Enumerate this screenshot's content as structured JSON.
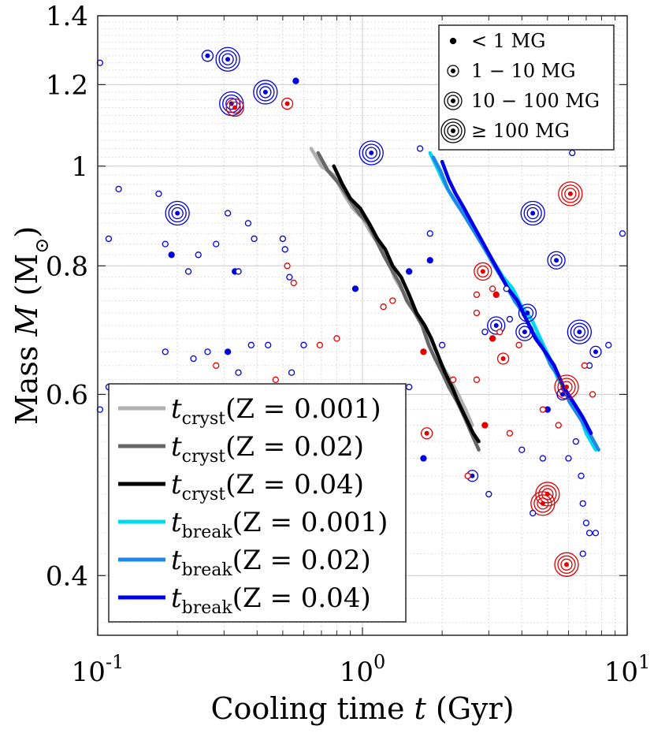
{
  "chart_data": {
    "type": "scatter",
    "xscale": "log",
    "yscale": "log",
    "xlim": [
      0.1,
      10
    ],
    "ylim": [
      0.35,
      1.4
    ],
    "xlabel_prefix": "Cooling time ",
    "xlabel_var": "t",
    "xlabel_suffix": " (Gyr)",
    "ylabel_prefix": "Mass ",
    "ylabel_var": "M",
    "ylabel_unit_open": " (M",
    "ylabel_unit_sub": "⊙",
    "ylabel_unit_close": ")",
    "x_ticks": [
      {
        "value": 0.1,
        "base": "10",
        "exp": "-1"
      },
      {
        "value": 1,
        "base": "10",
        "exp": "0"
      },
      {
        "value": 10,
        "base": "10",
        "exp": "1"
      }
    ],
    "y_ticks": [
      {
        "value": 0.4,
        "label": "0.4"
      },
      {
        "value": 0.6,
        "label": "0.6"
      },
      {
        "value": 0.8,
        "label": "0.8"
      },
      {
        "value": 1.0,
        "label": "1"
      },
      {
        "value": 1.2,
        "label": "1.2"
      },
      {
        "value": 1.4,
        "label": "1.4"
      }
    ],
    "colors": {
      "blue_points": "#0000dd",
      "red_points": "#e00000",
      "cryst_Z0001": "#b0b0b0",
      "cryst_Z002": "#666666",
      "cryst_Z004": "#000000",
      "break_Z0001": "#00d8f0",
      "break_Z002": "#1e88e8",
      "break_Z004": "#0000e6"
    },
    "field_legend": [
      {
        "label": "< 1 MG",
        "rings": 0
      },
      {
        "label": "1 − 10 MG",
        "rings": 1
      },
      {
        "label": "10 − 100 MG",
        "rings": 2
      },
      {
        "label": "≥ 100 MG",
        "rings": 3
      }
    ],
    "series": [
      {
        "name": "cryst_Z0001",
        "label_main": "t",
        "label_sub": "cryst",
        "label_rest": "(Z = 0.001)",
        "color_key": "cryst_Z0001",
        "x": [
          0.64,
          0.7,
          0.78,
          0.85,
          0.92,
          1.0,
          1.08,
          1.15,
          1.25,
          1.32,
          1.4,
          1.5,
          1.6,
          1.7,
          1.8,
          1.9,
          2.0,
          2.15,
          2.3,
          2.45,
          2.6
        ],
        "y": [
          1.04,
          1.0,
          0.98,
          0.94,
          0.91,
          0.89,
          0.86,
          0.84,
          0.81,
          0.78,
          0.76,
          0.74,
          0.72,
          0.7,
          0.68,
          0.66,
          0.64,
          0.62,
          0.6,
          0.58,
          0.56
        ]
      },
      {
        "name": "cryst_Z002",
        "label_main": "t",
        "label_sub": "cryst",
        "label_rest": "(Z = 0.02)",
        "color_key": "cryst_Z002",
        "x": [
          0.68,
          0.74,
          0.82,
          0.89,
          0.97,
          1.05,
          1.12,
          1.2,
          1.3,
          1.38,
          1.47,
          1.58,
          1.68,
          1.78,
          1.88,
          2.0,
          2.12,
          2.28,
          2.43,
          2.58,
          2.75
        ],
        "y": [
          1.03,
          0.99,
          0.96,
          0.93,
          0.9,
          0.88,
          0.85,
          0.82,
          0.79,
          0.77,
          0.74,
          0.72,
          0.7,
          0.67,
          0.65,
          0.63,
          0.61,
          0.59,
          0.57,
          0.55,
          0.53
        ]
      },
      {
        "name": "cryst_Z004",
        "label_main": "t",
        "label_sub": "cryst",
        "label_rest": "(Z = 0.04)",
        "color_key": "cryst_Z004",
        "x": [
          0.78,
          0.84,
          0.9,
          0.98,
          1.06,
          1.14,
          1.22,
          1.3,
          1.4,
          1.5,
          1.6,
          1.72,
          1.82,
          1.95,
          2.05,
          2.18,
          2.3,
          2.45,
          2.62,
          2.75
        ],
        "y": [
          1.0,
          0.96,
          0.93,
          0.91,
          0.88,
          0.85,
          0.83,
          0.8,
          0.78,
          0.75,
          0.72,
          0.7,
          0.68,
          0.65,
          0.63,
          0.61,
          0.59,
          0.57,
          0.55,
          0.54
        ]
      },
      {
        "name": "break_Z0001",
        "label_main": "t",
        "label_sub": "break",
        "label_rest": "(Z = 0.001)",
        "color_key": "break_Z0001",
        "x": [
          1.8,
          1.9,
          2.05,
          2.2,
          2.4,
          2.6,
          2.85,
          3.1,
          3.4,
          3.7,
          4.0,
          4.35,
          4.7,
          5.1,
          5.5,
          6.0,
          6.5,
          7.0,
          7.6
        ],
        "y": [
          1.03,
          1.0,
          0.96,
          0.93,
          0.9,
          0.87,
          0.84,
          0.81,
          0.78,
          0.76,
          0.73,
          0.71,
          0.68,
          0.65,
          0.62,
          0.6,
          0.58,
          0.55,
          0.53
        ]
      },
      {
        "name": "break_Z002",
        "label_main": "t",
        "label_sub": "break",
        "label_rest": "(Z = 0.02)",
        "color_key": "break_Z002",
        "x": [
          1.85,
          1.97,
          2.1,
          2.27,
          2.46,
          2.67,
          2.9,
          3.15,
          3.45,
          3.75,
          4.05,
          4.4,
          4.75,
          5.15,
          5.6,
          6.05,
          6.6,
          7.2,
          7.8
        ],
        "y": [
          1.02,
          0.99,
          0.95,
          0.92,
          0.89,
          0.86,
          0.83,
          0.8,
          0.77,
          0.74,
          0.72,
          0.69,
          0.67,
          0.64,
          0.62,
          0.59,
          0.57,
          0.55,
          0.53
        ]
      },
      {
        "name": "break_Z004",
        "label_main": "t",
        "label_sub": "break",
        "label_rest": "(Z = 0.04)",
        "color_key": "break_Z004",
        "x": [
          2.0,
          2.12,
          2.25,
          2.42,
          2.6,
          2.8,
          3.02,
          3.27,
          3.55,
          3.85,
          4.15,
          4.5,
          4.9,
          5.3,
          5.75,
          6.25,
          6.8,
          7.3
        ],
        "y": [
          1.01,
          0.97,
          0.94,
          0.91,
          0.88,
          0.85,
          0.82,
          0.79,
          0.76,
          0.74,
          0.71,
          0.68,
          0.66,
          0.64,
          0.61,
          0.59,
          0.57,
          0.55
        ]
      }
    ],
    "points": [
      {
        "x": 0.102,
        "y": 1.26,
        "c": "b",
        "r": 0
      },
      {
        "x": 0.26,
        "y": 1.28,
        "c": "b",
        "r": 1
      },
      {
        "x": 0.31,
        "y": 1.27,
        "c": "b",
        "r": 3
      },
      {
        "x": 0.32,
        "y": 1.15,
        "c": "b",
        "r": 3
      },
      {
        "x": 0.33,
        "y": 1.14,
        "c": "r",
        "r": 2
      },
      {
        "x": 0.43,
        "y": 1.18,
        "c": "b",
        "r": 3
      },
      {
        "x": 0.52,
        "y": 1.15,
        "c": "r",
        "r": 1
      },
      {
        "x": 0.56,
        "y": 1.21,
        "c": "b",
        "r": 0,
        "f": 1
      },
      {
        "x": 1.08,
        "y": 1.03,
        "c": "b",
        "r": 3
      },
      {
        "x": 1.65,
        "y": 1.04,
        "c": "b",
        "r": 0
      },
      {
        "x": 0.2,
        "y": 0.9,
        "c": "b",
        "r": 3
      },
      {
        "x": 0.12,
        "y": 0.95,
        "c": "b",
        "r": 0
      },
      {
        "x": 0.17,
        "y": 0.94,
        "c": "b",
        "r": 0
      },
      {
        "x": 0.31,
        "y": 0.9,
        "c": "b",
        "r": 0
      },
      {
        "x": 0.37,
        "y": 0.88,
        "c": "b",
        "r": 0
      },
      {
        "x": 0.11,
        "y": 0.85,
        "c": "b",
        "r": 0
      },
      {
        "x": 0.18,
        "y": 0.84,
        "c": "b",
        "r": 0
      },
      {
        "x": 0.24,
        "y": 0.82,
        "c": "b",
        "r": 0
      },
      {
        "x": 0.19,
        "y": 0.82,
        "c": "b",
        "r": 0,
        "f": 1
      },
      {
        "x": 0.28,
        "y": 0.84,
        "c": "b",
        "r": 0
      },
      {
        "x": 0.39,
        "y": 0.85,
        "c": "b",
        "r": 0
      },
      {
        "x": 0.5,
        "y": 0.85,
        "c": "b",
        "r": 0
      },
      {
        "x": 0.51,
        "y": 0.83,
        "c": "b",
        "r": 0
      },
      {
        "x": 0.22,
        "y": 0.79,
        "c": "b",
        "r": 0
      },
      {
        "x": 0.33,
        "y": 0.79,
        "c": "b",
        "r": 0,
        "f": 1
      },
      {
        "x": 0.34,
        "y": 0.79,
        "c": "b",
        "r": 0
      },
      {
        "x": 0.53,
        "y": 0.78,
        "c": "b",
        "r": 0
      },
      {
        "x": 0.52,
        "y": 0.8,
        "c": "r",
        "r": 0
      },
      {
        "x": 0.55,
        "y": 0.77,
        "c": "r",
        "r": 0
      },
      {
        "x": 1.8,
        "y": 0.86,
        "c": "b",
        "r": 0
      },
      {
        "x": 1.8,
        "y": 0.81,
        "c": "b",
        "r": 0,
        "f": 1
      },
      {
        "x": 2.85,
        "y": 0.79,
        "c": "r",
        "r": 2
      },
      {
        "x": 4.4,
        "y": 0.9,
        "c": "b",
        "r": 3
      },
      {
        "x": 6.1,
        "y": 0.94,
        "c": "r",
        "r": 3
      },
      {
        "x": 6.2,
        "y": 1.03,
        "c": "b",
        "r": 0
      },
      {
        "x": 9.6,
        "y": 0.86,
        "c": "b",
        "r": 0
      },
      {
        "x": 5.4,
        "y": 0.81,
        "c": "b",
        "r": 2
      },
      {
        "x": 0.94,
        "y": 0.76,
        "c": "b",
        "r": 0,
        "f": 1
      },
      {
        "x": 1.5,
        "y": 0.79,
        "c": "b",
        "r": 0,
        "f": 1
      },
      {
        "x": 3.1,
        "y": 0.76,
        "c": "r",
        "r": 0
      },
      {
        "x": 3.2,
        "y": 0.75,
        "c": "r",
        "r": 0,
        "f": 1
      },
      {
        "x": 3.5,
        "y": 0.76,
        "c": "b",
        "r": 0
      },
      {
        "x": 2.7,
        "y": 0.75,
        "c": "r",
        "r": 0
      },
      {
        "x": 1.3,
        "y": 0.74,
        "c": "r",
        "r": 0
      },
      {
        "x": 1.2,
        "y": 0.73,
        "c": "r",
        "r": 0
      },
      {
        "x": 3.2,
        "y": 0.7,
        "c": "b",
        "r": 2
      },
      {
        "x": 4.2,
        "y": 0.72,
        "c": "b",
        "r": 2
      },
      {
        "x": 4.1,
        "y": 0.69,
        "c": "b",
        "r": 2
      },
      {
        "x": 3.1,
        "y": 0.68,
        "c": "r",
        "r": 0,
        "f": 1
      },
      {
        "x": 3.3,
        "y": 0.69,
        "c": "r",
        "r": 0
      },
      {
        "x": 6.6,
        "y": 0.69,
        "c": "b",
        "r": 3
      },
      {
        "x": 3.4,
        "y": 0.65,
        "c": "r",
        "r": 1
      },
      {
        "x": 2.0,
        "y": 0.67,
        "c": "b",
        "r": 0
      },
      {
        "x": 1.7,
        "y": 0.66,
        "c": "r",
        "r": 0,
        "f": 1
      },
      {
        "x": 0.26,
        "y": 0.66,
        "c": "b",
        "r": 0
      },
      {
        "x": 0.31,
        "y": 0.66,
        "c": "b",
        "r": 0,
        "f": 1
      },
      {
        "x": 0.38,
        "y": 0.67,
        "c": "b",
        "r": 0
      },
      {
        "x": 0.44,
        "y": 0.67,
        "c": "b",
        "r": 0
      },
      {
        "x": 0.6,
        "y": 0.67,
        "c": "b",
        "r": 0
      },
      {
        "x": 0.69,
        "y": 0.67,
        "c": "r",
        "r": 0
      },
      {
        "x": 0.8,
        "y": 0.68,
        "c": "r",
        "r": 0
      },
      {
        "x": 0.23,
        "y": 0.65,
        "c": "b",
        "r": 0
      },
      {
        "x": 0.18,
        "y": 0.66,
        "c": "b",
        "r": 0
      },
      {
        "x": 0.34,
        "y": 0.63,
        "c": "b",
        "r": 0
      },
      {
        "x": 0.54,
        "y": 0.63,
        "c": "b",
        "r": 0
      },
      {
        "x": 0.47,
        "y": 0.62,
        "c": "r",
        "r": 0
      },
      {
        "x": 0.28,
        "y": 0.64,
        "c": "r",
        "r": 0
      },
      {
        "x": 0.11,
        "y": 0.61,
        "c": "b",
        "r": 0
      },
      {
        "x": 0.15,
        "y": 0.61,
        "c": "b",
        "r": 0
      },
      {
        "x": 0.13,
        "y": 0.6,
        "c": "b",
        "r": 0
      },
      {
        "x": 0.102,
        "y": 0.58,
        "c": "b",
        "r": 0
      },
      {
        "x": 0.95,
        "y": 0.61,
        "c": "b",
        "r": 0
      },
      {
        "x": 1.2,
        "y": 0.61,
        "c": "b",
        "r": 0
      },
      {
        "x": 1.5,
        "y": 0.61,
        "c": "b",
        "r": 0
      },
      {
        "x": 2.2,
        "y": 0.62,
        "c": "r",
        "r": 0
      },
      {
        "x": 2.7,
        "y": 0.62,
        "c": "r",
        "r": 0
      },
      {
        "x": 5.9,
        "y": 0.61,
        "c": "r",
        "r": 3
      },
      {
        "x": 5.7,
        "y": 0.6,
        "c": "b",
        "r": 1
      },
      {
        "x": 7.4,
        "y": 0.6,
        "c": "r",
        "r": 0
      },
      {
        "x": 7.2,
        "y": 0.64,
        "c": "b",
        "r": 0
      },
      {
        "x": 7.6,
        "y": 0.66,
        "c": "b",
        "r": 1
      },
      {
        "x": 8.5,
        "y": 0.67,
        "c": "b",
        "r": 0
      },
      {
        "x": 5.0,
        "y": 0.58,
        "c": "b",
        "r": 0,
        "f": 1
      },
      {
        "x": 4.8,
        "y": 0.58,
        "c": "r",
        "r": 0
      },
      {
        "x": 2.9,
        "y": 0.56,
        "c": "r",
        "r": 0,
        "f": 1
      },
      {
        "x": 1.75,
        "y": 0.55,
        "c": "r",
        "r": 1
      },
      {
        "x": 1.7,
        "y": 0.52,
        "c": "b",
        "r": 0,
        "f": 1
      },
      {
        "x": 2.6,
        "y": 0.5,
        "c": "b",
        "r": 1
      },
      {
        "x": 2.5,
        "y": 0.5,
        "c": "r",
        "r": 0
      },
      {
        "x": 3.0,
        "y": 0.48,
        "c": "b",
        "r": 0
      },
      {
        "x": 4.0,
        "y": 0.53,
        "c": "b",
        "r": 0
      },
      {
        "x": 4.8,
        "y": 0.52,
        "c": "b",
        "r": 0
      },
      {
        "x": 6.0,
        "y": 0.52,
        "c": "b",
        "r": 0
      },
      {
        "x": 6.4,
        "y": 0.54,
        "c": "b",
        "r": 0
      },
      {
        "x": 5.0,
        "y": 0.48,
        "c": "r",
        "r": 3
      },
      {
        "x": 4.8,
        "y": 0.47,
        "c": "r",
        "r": 3
      },
      {
        "x": 4.4,
        "y": 0.46,
        "c": "b",
        "r": 0
      },
      {
        "x": 6.8,
        "y": 0.47,
        "c": "b",
        "r": 0
      },
      {
        "x": 7.0,
        "y": 0.45,
        "c": "b",
        "r": 0
      },
      {
        "x": 7.2,
        "y": 0.44,
        "c": "b",
        "r": 0
      },
      {
        "x": 7.6,
        "y": 0.44,
        "c": "b",
        "r": 0
      },
      {
        "x": 5.9,
        "y": 0.41,
        "c": "r",
        "r": 3
      },
      {
        "x": 6.8,
        "y": 0.42,
        "c": "b",
        "r": 0
      },
      {
        "x": 6.7,
        "y": 0.5,
        "c": "b",
        "r": 0
      },
      {
        "x": 3.6,
        "y": 0.55,
        "c": "r",
        "r": 0
      },
      {
        "x": 5.5,
        "y": 0.56,
        "c": "r",
        "r": 0
      },
      {
        "x": 6.9,
        "y": 0.64,
        "c": "r",
        "r": 0
      },
      {
        "x": 3.9,
        "y": 0.67,
        "c": "r",
        "r": 0
      },
      {
        "x": 3.6,
        "y": 0.71,
        "c": "b",
        "r": 0
      },
      {
        "x": 2.7,
        "y": 0.72,
        "c": "r",
        "r": 0
      },
      {
        "x": 2.9,
        "y": 0.69,
        "c": "b",
        "r": 0
      }
    ]
  }
}
